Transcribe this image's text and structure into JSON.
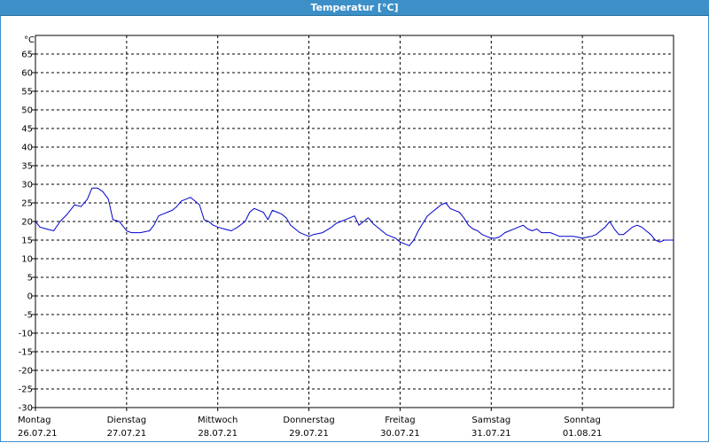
{
  "chart_data": {
    "type": "line",
    "title": "Temperatur [°C]",
    "unit_label": "°C",
    "ylim": [
      -30,
      70
    ],
    "yticks": [
      65,
      60,
      55,
      50,
      45,
      40,
      35,
      30,
      25,
      20,
      15,
      10,
      5,
      0,
      -5,
      -10,
      -15,
      -20,
      -25,
      -30
    ],
    "xlim_days": [
      0,
      7
    ],
    "grid": true,
    "line_color": "#0000cc",
    "days": [
      {
        "name": "Montag",
        "date": "26.07.21"
      },
      {
        "name": "Dienstag",
        "date": "27.07.21"
      },
      {
        "name": "Mittwoch",
        "date": "28.07.21"
      },
      {
        "name": "Donnerstag",
        "date": "29.07.21"
      },
      {
        "name": "Freitag",
        "date": "30.07.21"
      },
      {
        "name": "Samstag",
        "date": "31.07.21"
      },
      {
        "name": "Sonntag",
        "date": "01.08.21"
      }
    ],
    "series": [
      {
        "x_days": [
          0.0,
          0.05,
          0.12,
          0.2,
          0.27,
          0.35,
          0.43,
          0.5,
          0.57,
          0.62,
          0.68,
          0.74,
          0.8,
          0.85,
          0.92,
          1.0,
          1.05,
          1.15,
          1.25,
          1.3,
          1.35,
          1.4,
          1.45,
          1.5,
          1.55,
          1.6,
          1.65,
          1.7,
          1.75,
          1.8,
          1.85,
          1.9,
          1.95,
          2.0,
          2.07,
          2.15,
          2.22,
          2.3,
          2.35,
          2.4,
          2.45,
          2.5,
          2.55,
          2.6,
          2.65,
          2.7,
          2.75,
          2.8,
          2.85,
          2.9,
          2.95,
          3.0,
          3.05,
          3.15,
          3.25,
          3.3,
          3.35,
          3.4,
          3.45,
          3.5,
          3.55,
          3.6,
          3.65,
          3.67,
          3.7,
          3.75,
          3.8,
          3.85,
          3.9,
          3.95,
          4.0,
          4.05,
          4.1,
          4.15,
          4.2,
          4.25,
          4.3,
          4.35,
          4.4,
          4.45,
          4.5,
          4.55,
          4.6,
          4.65,
          4.7,
          4.75,
          4.8,
          4.85,
          4.9,
          4.95,
          5.0,
          5.05,
          5.1,
          5.15,
          5.2,
          5.25,
          5.3,
          5.35,
          5.4,
          5.45,
          5.5,
          5.55,
          5.6,
          5.65,
          5.7,
          5.75,
          5.8,
          5.85,
          5.9,
          5.95,
          6.0,
          6.05,
          6.1,
          6.15,
          6.2,
          6.25,
          6.3,
          6.35,
          6.4,
          6.45,
          6.5,
          6.55,
          6.6,
          6.65,
          6.7,
          6.75,
          6.8,
          6.85,
          6.9,
          6.95,
          7.0
        ],
        "values": [
          20.0,
          18.5,
          18.0,
          17.5,
          20.0,
          22.0,
          24.5,
          24.0,
          26.0,
          29.0,
          29.0,
          28.0,
          26.0,
          20.5,
          20.0,
          17.5,
          17.0,
          17.0,
          17.5,
          19.0,
          21.5,
          22.0,
          22.5,
          23.0,
          24.0,
          25.5,
          26.0,
          26.5,
          25.5,
          24.5,
          20.5,
          20.0,
          19.0,
          18.5,
          18.0,
          17.5,
          18.5,
          20.0,
          22.5,
          23.5,
          23.0,
          22.5,
          20.5,
          23.0,
          22.5,
          22.0,
          21.0,
          19.0,
          18.0,
          17.0,
          16.5,
          16.0,
          16.5,
          17.0,
          18.5,
          19.5,
          20.0,
          20.5,
          21.0,
          21.5,
          19.0,
          20.0,
          21.0,
          20.5,
          19.5,
          18.5,
          17.5,
          16.5,
          16.0,
          15.5,
          14.5,
          14.0,
          13.5,
          15.0,
          17.5,
          19.5,
          21.5,
          22.5,
          23.5,
          24.5,
          25.0,
          23.5,
          23.0,
          22.5,
          21.0,
          19.0,
          18.0,
          17.5,
          16.5,
          16.0,
          15.5,
          15.5,
          16.0,
          17.0,
          17.5,
          18.0,
          18.5,
          19.0,
          18.0,
          17.5,
          18.0,
          17.0,
          17.0,
          17.0,
          16.5,
          16.0,
          16.0,
          16.0,
          16.0,
          15.8,
          15.5,
          15.8,
          16.0,
          16.5,
          17.5,
          18.5,
          20.0,
          18.0,
          16.5,
          16.5,
          17.5,
          18.5,
          19.0,
          18.5,
          17.5,
          16.5,
          15.0,
          14.5,
          15.0,
          15.0,
          15.0
        ]
      }
    ]
  }
}
